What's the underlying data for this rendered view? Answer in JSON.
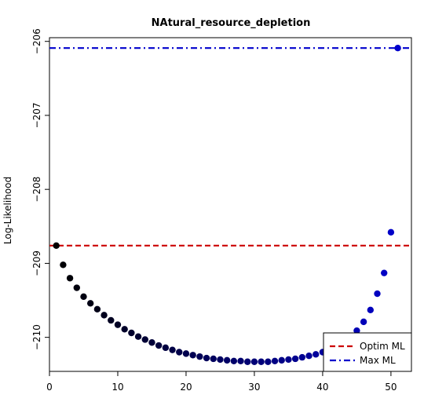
{
  "chart_data": {
    "type": "scatter",
    "title": "NAtural_resource_depletion",
    "xlabel": "",
    "ylabel": "Log-Likelihood",
    "xlim": [
      0,
      53
    ],
    "ylim": [
      -210.46,
      -205.95
    ],
    "xticks": [
      0,
      10,
      20,
      30,
      40,
      50
    ],
    "yticks": [
      -206,
      -207,
      -208,
      -209,
      -210
    ],
    "xtick_labels": [
      "0",
      "10",
      "20",
      "30",
      "40",
      "50"
    ],
    "ytick_labels": [
      "−206",
      "−207",
      "−208",
      "−209",
      "−210"
    ],
    "grid": false,
    "legend_position": "bottom-right",
    "points": {
      "x": [
        1,
        2,
        3,
        4,
        5,
        6,
        7,
        8,
        9,
        10,
        11,
        12,
        13,
        14,
        15,
        16,
        17,
        18,
        19,
        20,
        21,
        22,
        23,
        24,
        25,
        26,
        27,
        28,
        29,
        30,
        31,
        32,
        33,
        34,
        35,
        36,
        37,
        38,
        39,
        40,
        41,
        42,
        43,
        44,
        45,
        46,
        47,
        48,
        49,
        50,
        51
      ],
      "y": [
        -208.76,
        -209.02,
        -209.2,
        -209.33,
        -209.45,
        -209.54,
        -209.62,
        -209.7,
        -209.77,
        -209.83,
        -209.89,
        -209.94,
        -209.99,
        -210.03,
        -210.07,
        -210.11,
        -210.14,
        -210.17,
        -210.2,
        -210.22,
        -210.24,
        -210.26,
        -210.28,
        -210.29,
        -210.3,
        -210.31,
        -210.32,
        -210.32,
        -210.33,
        -210.33,
        -210.33,
        -210.33,
        -210.32,
        -210.31,
        -210.3,
        -210.29,
        -210.27,
        -210.25,
        -210.23,
        -210.2,
        -210.16,
        -210.12,
        -210.06,
        -210.0,
        -209.91,
        -209.79,
        -209.63,
        -209.41,
        -209.13,
        -208.58,
        -206.09
      ],
      "color_start": "#000000",
      "color_end": "#0000cc"
    },
    "reference_lines": [
      {
        "name": "Optim ML",
        "y": -208.76,
        "color": "#cc0000",
        "style": "dashed"
      },
      {
        "name": "Max ML",
        "y": -206.09,
        "color": "#0000cc",
        "style": "dashdot"
      }
    ]
  }
}
